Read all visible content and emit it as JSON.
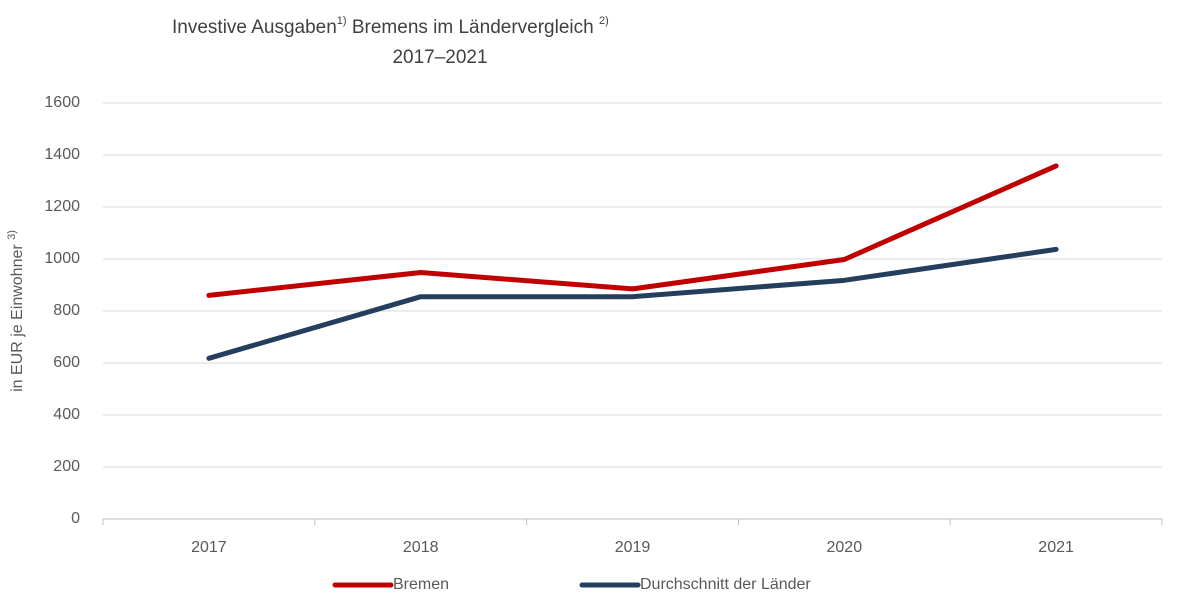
{
  "chart_data": {
    "type": "line",
    "title_parts": [
      "Investive Ausgaben",
      "1)",
      " Bremens im Ländervergleich ",
      "2)"
    ],
    "subtitle": "2017–2021",
    "ylabel_parts": [
      "in EUR je Einwohner ",
      "3)"
    ],
    "categories": [
      "2017",
      "2018",
      "2019",
      "2020",
      "2021"
    ],
    "series": [
      {
        "name": "Bremen",
        "color": "#c00000",
        "values": [
          860,
          948,
          885,
          998,
          1358
        ]
      },
      {
        "name": "Durchschnitt der Länder",
        "color": "#243e5e",
        "values": [
          618,
          855,
          855,
          918,
          1037
        ]
      }
    ],
    "ylim": [
      0,
      1600
    ],
    "yticks": [
      0,
      200,
      400,
      600,
      800,
      1000,
      1200,
      1400,
      1600
    ],
    "grid": true,
    "legend": "bottom"
  }
}
